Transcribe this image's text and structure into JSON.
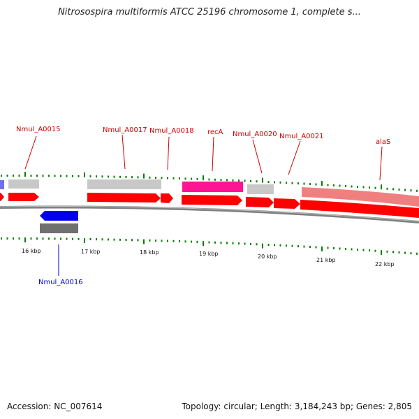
{
  "title": "Nitrosospira multiformis ATCC 25196 chromosome 1, complete s...",
  "footer": {
    "accession": "Accession: NC_007614",
    "stats": "Topology: circular; Length: 3,184,243 bp; Genes: 2,805"
  },
  "colors": {
    "forward_gene": "#ff0000",
    "reverse_gene": "#0000ee",
    "forward_label": "#cc0000",
    "reverse_label": "#0000cc",
    "feature_grey": "#c8c8c8",
    "feature_dark_grey": "#707070",
    "feature_magenta": "#ff1493",
    "feature_pink": "#f08080",
    "tick": "#008000",
    "backbone": "#808080"
  },
  "scale_labels": [
    "16 kbp",
    "17 kbp",
    "18 kbp",
    "19 kbp",
    "20 kbp",
    "21 kbp",
    "22 kbp"
  ],
  "gene_labels": [
    {
      "text": "Nmul_A0015",
      "strand": "forward"
    },
    {
      "text": "Nmul_A0016",
      "strand": "reverse"
    },
    {
      "text": "Nmul_A0017",
      "strand": "forward"
    },
    {
      "text": "Nmul_A0018",
      "strand": "forward"
    },
    {
      "text": "recA",
      "strand": "forward"
    },
    {
      "text": "Nmul_A0020",
      "strand": "forward"
    },
    {
      "text": "Nmul_A0021",
      "strand": "forward"
    },
    {
      "text": "alaS",
      "strand": "forward"
    }
  ]
}
